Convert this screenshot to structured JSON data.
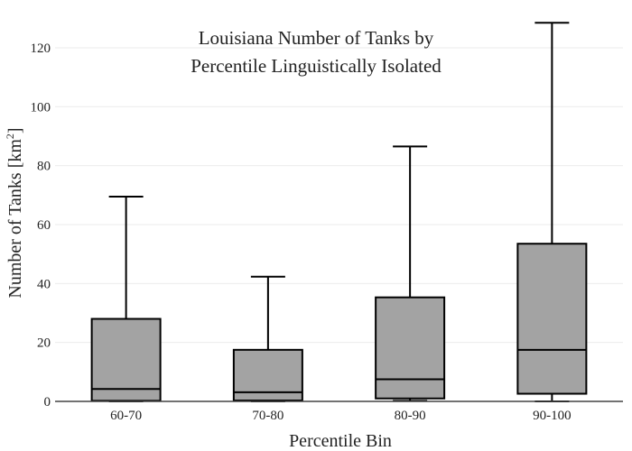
{
  "chart_data": {
    "type": "box",
    "title_lines": [
      "Louisiana Number of Tanks by",
      "Percentile Linguistically Isolated"
    ],
    "xlabel": "Percentile Bin",
    "ylabel_main": "Number of Tanks  [km",
    "ylabel_sup": "2",
    "ylabel_close": "]",
    "ylim": [
      0,
      130
    ],
    "yticks": [
      0,
      20,
      40,
      60,
      80,
      100,
      120
    ],
    "grid": true,
    "categories": [
      "60-70",
      "70-80",
      "80-90",
      "90-100"
    ],
    "boxes": [
      {
        "category": "60-70",
        "min": 0,
        "q1": 0.2,
        "median": 4.2,
        "q3": 28,
        "max": 69.5
      },
      {
        "category": "70-80",
        "min": 0,
        "q1": 0.3,
        "median": 3.1,
        "q3": 17.5,
        "max": 42.3
      },
      {
        "category": "80-90",
        "min": 0.2,
        "q1": 1,
        "median": 7.5,
        "q3": 35.3,
        "max": 86.5
      },
      {
        "category": "90-100",
        "min": 0,
        "q1": 2.6,
        "median": 17.5,
        "q3": 53.5,
        "max": 128.5
      }
    ],
    "colors": {
      "box_fill": "#a3a3a3",
      "box_stroke": "#000000",
      "grid": "#ebebeb",
      "axis": "#444444"
    }
  }
}
